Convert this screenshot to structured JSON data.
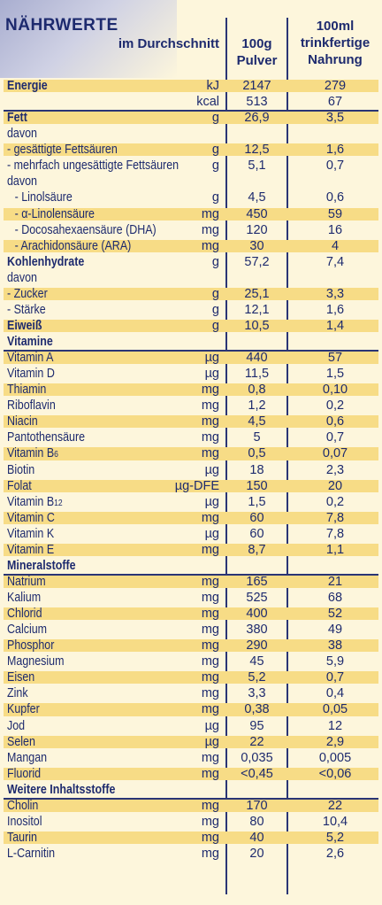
{
  "header": {
    "title": "NÄHRWERTE",
    "col_avg": "im Durchschnitt",
    "col_100g": "100g Pulver",
    "col_100ml": "100ml trinkfertige Nahrung"
  },
  "rows": [
    {
      "name": "Energie",
      "unit": "kJ",
      "v100g": "2147",
      "v100ml": "279",
      "bold": true,
      "shaded": true
    },
    {
      "name": "",
      "unit": "kcal",
      "v100g": "513",
      "v100ml": "67"
    },
    {
      "name": "Fett",
      "unit": "g",
      "v100g": "26,9",
      "v100ml": "3,5",
      "bold": true,
      "shaded": true,
      "sep": true
    },
    {
      "name": "davon",
      "unit": "",
      "v100g": "",
      "v100ml": ""
    },
    {
      "name": "- gesättigte Fettsäuren",
      "unit": "g",
      "v100g": "12,5",
      "v100ml": "1,6",
      "shaded": true
    },
    {
      "name": "- mehrfach ungesättigte Fettsäuren",
      "unit": "g",
      "v100g": "5,1",
      "v100ml": "0,7"
    },
    {
      "name": "davon",
      "unit": "",
      "v100g": "",
      "v100ml": "",
      "indent": 1
    },
    {
      "name": "- Linolsäure",
      "unit": "g",
      "v100g": "4,5",
      "v100ml": "0,6",
      "indent": 2
    },
    {
      "name": "- α-Linolensäure",
      "unit": "mg",
      "v100g": "450",
      "v100ml": "59",
      "indent": 2,
      "shaded": true
    },
    {
      "name": "- Docosahexaensäure (DHA)",
      "unit": "mg",
      "v100g": "120",
      "v100ml": "16",
      "indent": 2
    },
    {
      "name": "- Arachidonsäure (ARA)",
      "unit": "mg",
      "v100g": "30",
      "v100ml": "4",
      "indent": 2,
      "shaded": true
    },
    {
      "name": "Kohlenhydrate",
      "unit": "g",
      "v100g": "57,2",
      "v100ml": "7,4",
      "bold": true
    },
    {
      "name": "davon",
      "unit": "",
      "v100g": "",
      "v100ml": ""
    },
    {
      "name": "- Zucker",
      "unit": "g",
      "v100g": "25,1",
      "v100ml": "3,3",
      "shaded": true
    },
    {
      "name": "- Stärke",
      "unit": "g",
      "v100g": "12,1",
      "v100ml": "1,6"
    },
    {
      "name": "Eiweiß",
      "unit": "g",
      "v100g": "10,5",
      "v100ml": "1,4",
      "bold": true,
      "shaded": true
    },
    {
      "name": "Vitamine",
      "unit": "",
      "v100g": "",
      "v100ml": "",
      "bold": true
    },
    {
      "name": "Vitamin A",
      "unit": "µg",
      "v100g": "440",
      "v100ml": "57",
      "shaded": true,
      "sep": true
    },
    {
      "name": "Vitamin D",
      "unit": "µg",
      "v100g": "11,5",
      "v100ml": "1,5"
    },
    {
      "name": "Thiamin",
      "unit": "mg",
      "v100g": "0,8",
      "v100ml": "0,10",
      "shaded": true
    },
    {
      "name": "Riboflavin",
      "unit": "mg",
      "v100g": "1,2",
      "v100ml": "0,2"
    },
    {
      "name": "Niacin",
      "unit": "mg",
      "v100g": "4,5",
      "v100ml": "0,6",
      "shaded": true
    },
    {
      "name": "Pantothensäure",
      "unit": "mg",
      "v100g": "5",
      "v100ml": "0,7"
    },
    {
      "name": "Vitamin B",
      "sub": "6",
      "unit": "mg",
      "v100g": "0,5",
      "v100ml": "0,07",
      "shaded": true
    },
    {
      "name": "Biotin",
      "unit": "µg",
      "v100g": "18",
      "v100ml": "2,3"
    },
    {
      "name": "Folat",
      "unit": "µg-DFE",
      "v100g": "150",
      "v100ml": "20",
      "shaded": true
    },
    {
      "name": "Vitamin B",
      "sub": "12",
      "unit": "µg",
      "v100g": "1,5",
      "v100ml": "0,2"
    },
    {
      "name": "Vitamin C",
      "unit": "mg",
      "v100g": "60",
      "v100ml": "7,8",
      "shaded": true
    },
    {
      "name": "Vitamin K",
      "unit": "µg",
      "v100g": "60",
      "v100ml": "7,8"
    },
    {
      "name": "Vitamin E",
      "unit": "mg",
      "v100g": "8,7",
      "v100ml": "1,1",
      "shaded": true
    },
    {
      "name": "Mineralstoffe",
      "unit": "",
      "v100g": "",
      "v100ml": "",
      "bold": true
    },
    {
      "name": "Natrium",
      "unit": "mg",
      "v100g": "165",
      "v100ml": "21",
      "shaded": true,
      "sep": true
    },
    {
      "name": "Kalium",
      "unit": "mg",
      "v100g": "525",
      "v100ml": "68"
    },
    {
      "name": "Chlorid",
      "unit": "mg",
      "v100g": "400",
      "v100ml": "52",
      "shaded": true
    },
    {
      "name": "Calcium",
      "unit": "mg",
      "v100g": "380",
      "v100ml": "49"
    },
    {
      "name": "Phosphor",
      "unit": "mg",
      "v100g": "290",
      "v100ml": "38",
      "shaded": true
    },
    {
      "name": "Magnesium",
      "unit": "mg",
      "v100g": "45",
      "v100ml": "5,9"
    },
    {
      "name": "Eisen",
      "unit": "mg",
      "v100g": "5,2",
      "v100ml": "0,7",
      "shaded": true
    },
    {
      "name": "Zink",
      "unit": "mg",
      "v100g": "3,3",
      "v100ml": "0,4"
    },
    {
      "name": "Kupfer",
      "unit": "mg",
      "v100g": "0,38",
      "v100ml": "0,05",
      "shaded": true
    },
    {
      "name": "Jod",
      "unit": "µg",
      "v100g": "95",
      "v100ml": "12"
    },
    {
      "name": "Selen",
      "unit": "µg",
      "v100g": "22",
      "v100ml": "2,9",
      "shaded": true
    },
    {
      "name": "Mangan",
      "unit": "mg",
      "v100g": "0,035",
      "v100ml": "0,005"
    },
    {
      "name": "Fluorid",
      "unit": "mg",
      "v100g": "<0,45",
      "v100ml": "<0,06",
      "shaded": true
    },
    {
      "name": "Weitere Inhaltsstoffe",
      "unit": "",
      "v100g": "",
      "v100ml": "",
      "bold": true
    },
    {
      "name": "Cholin",
      "unit": "mg",
      "v100g": "170",
      "v100ml": "22",
      "shaded": true,
      "sep": true
    },
    {
      "name": "Inositol",
      "unit": "mg",
      "v100g": "80",
      "v100ml": "10,4"
    },
    {
      "name": "Taurin",
      "unit": "mg",
      "v100g": "40",
      "v100ml": "5,2",
      "shaded": true
    },
    {
      "name": "L-Carnitin",
      "unit": "mg",
      "v100g": "20",
      "v100ml": "2,6"
    }
  ]
}
